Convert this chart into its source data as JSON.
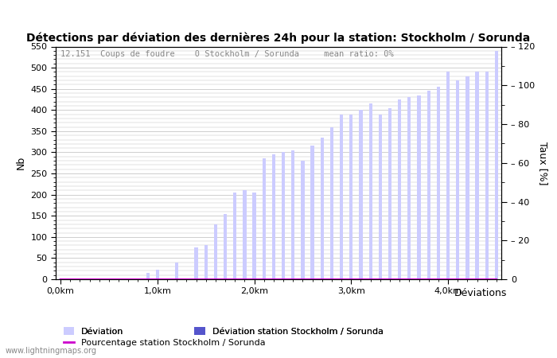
{
  "title": "Détections par déviation des dernières 24h pour la station: Stockholm / Sorunda",
  "subtitle": "12.151  Coups de foudre    0 Stockholm / Sorunda     mean ratio: 0%",
  "ylabel_left": "Nb",
  "ylabel_right": "Taux [%]",
  "xlabel_right": "Déviations",
  "legend_labels": [
    "Déviation",
    "Déviation station Stockholm / Sorunda",
    "Pourcentage station Stockholm / Sorunda"
  ],
  "bar_color_light": "#ccccff",
  "bar_color_dark": "#5555cc",
  "line_color": "#cc00cc",
  "background_color": "#ffffff",
  "grid_color": "#bbbbbb",
  "ylim_left": [
    0,
    550
  ],
  "ylim_right": [
    0,
    120
  ],
  "x_tick_labels": [
    "0,0km",
    "1,0km",
    "2,0km",
    "3,0km",
    "4,0km"
  ],
  "x_tick_positions": [
    0,
    10,
    20,
    30,
    40
  ],
  "watermark": "www.lightningmaps.org",
  "num_bars": 46,
  "deviations": [
    0,
    1,
    2,
    3,
    4,
    5,
    6,
    7,
    8,
    9,
    10,
    11,
    12,
    13,
    14,
    15,
    16,
    17,
    18,
    19,
    20,
    21,
    22,
    23,
    24,
    25,
    26,
    27,
    28,
    29,
    30,
    31,
    32,
    33,
    34,
    35,
    36,
    37,
    38,
    39,
    40,
    41,
    42,
    43,
    44,
    45
  ],
  "global_counts": [
    2,
    2,
    2,
    2,
    2,
    2,
    2,
    2,
    2,
    15,
    22,
    2,
    40,
    2,
    75,
    80,
    130,
    155,
    205,
    210,
    205,
    285,
    295,
    300,
    305,
    280,
    315,
    335,
    360,
    390,
    390,
    400,
    415,
    390,
    405,
    425,
    430,
    435,
    445,
    455,
    490,
    470,
    480,
    490,
    490,
    540
  ],
  "station_counts": [
    0,
    0,
    0,
    0,
    0,
    0,
    0,
    0,
    0,
    0,
    0,
    0,
    0,
    0,
    0,
    0,
    0,
    0,
    0,
    0,
    0,
    0,
    0,
    0,
    0,
    0,
    0,
    0,
    0,
    0,
    0,
    0,
    0,
    0,
    0,
    0,
    0,
    0,
    0,
    0,
    0,
    0,
    0,
    0,
    0,
    0
  ],
  "percentage": [
    0,
    0,
    0,
    0,
    0,
    0,
    0,
    0,
    0,
    0,
    0,
    0,
    0,
    0,
    0,
    0,
    0,
    0,
    0,
    0,
    0,
    0,
    0,
    0,
    0,
    0,
    0,
    0,
    0,
    0,
    0,
    0,
    0,
    0,
    0,
    0,
    0,
    0,
    0,
    0,
    0,
    0,
    0,
    0,
    0,
    0
  ]
}
